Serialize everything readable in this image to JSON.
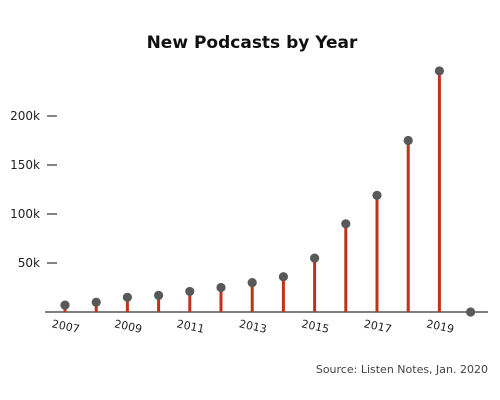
{
  "chart_data": {
    "type": "lollipop",
    "title": "New Podcasts by Year",
    "source": "Source: Listen Notes, Jan. 2020",
    "x": [
      2007,
      2008,
      2009,
      2010,
      2011,
      2012,
      2013,
      2014,
      2015,
      2016,
      2017,
      2018,
      2019,
      2020
    ],
    "values": [
      7000,
      10000,
      15000,
      17000,
      21000,
      25000,
      30000,
      36000,
      55000,
      90000,
      119000,
      175000,
      246000,
      0
    ],
    "x_tick_labels": [
      {
        "x": 2007,
        "label": "2007"
      },
      {
        "x": 2009,
        "label": "2009"
      },
      {
        "x": 2011,
        "label": "2011"
      },
      {
        "x": 2013,
        "label": "2013"
      },
      {
        "x": 2015,
        "label": "2015"
      },
      {
        "x": 2017,
        "label": "2017"
      },
      {
        "x": 2019,
        "label": "2019"
      }
    ],
    "y_ticks": [
      {
        "value": 50000,
        "label": "50k"
      },
      {
        "value": 100000,
        "label": "100k"
      },
      {
        "value": 150000,
        "label": "150k"
      },
      {
        "value": 200000,
        "label": "200k"
      }
    ],
    "ylim": [
      0,
      250000
    ],
    "grid": false,
    "colors": {
      "stem": "#c0321a",
      "dot": "#595959",
      "axis": "#333333"
    }
  }
}
